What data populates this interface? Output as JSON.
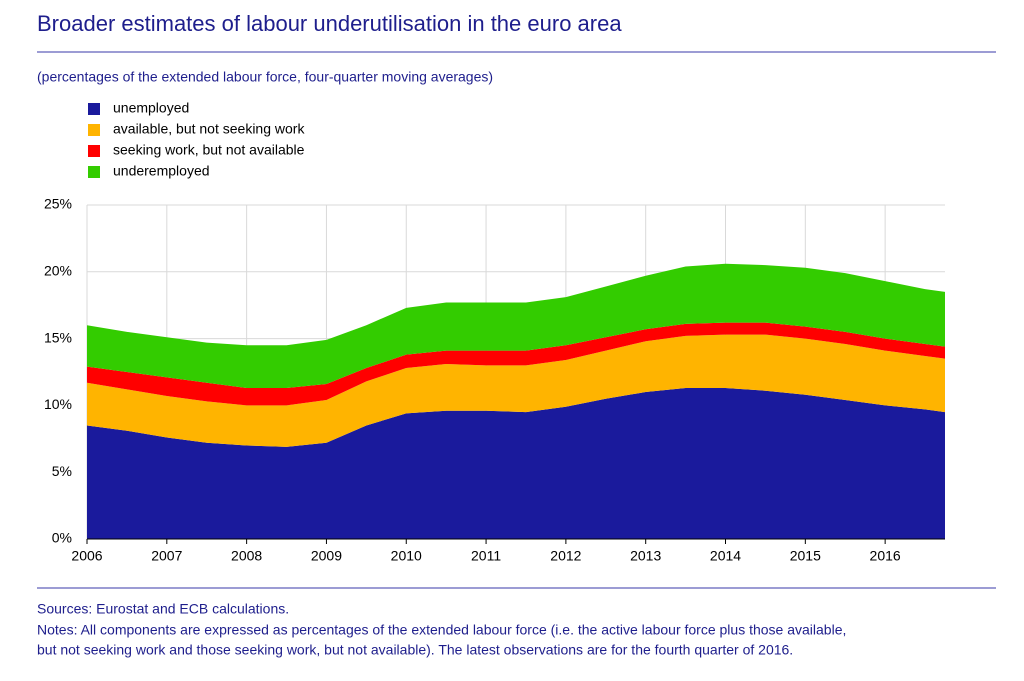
{
  "chart_data": {
    "type": "stacked-area",
    "title": "Broader estimates of labour underutilisation in the euro area",
    "subtitle": "(percentages of the extended labour force, four-quarter moving averages)",
    "x": [
      2006,
      2006.5,
      2007,
      2007.5,
      2008,
      2008.5,
      2009,
      2009.5,
      2010,
      2010.5,
      2011,
      2011.5,
      2012,
      2012.5,
      2013,
      2013.5,
      2014,
      2014.5,
      2015,
      2015.5,
      2016,
      2016.5,
      2016.75
    ],
    "series": [
      {
        "name": "unemployed",
        "color": "#1a1a9c",
        "values": [
          8.5,
          8.1,
          7.6,
          7.2,
          7.0,
          6.9,
          7.2,
          8.5,
          9.4,
          9.6,
          9.6,
          9.5,
          9.9,
          10.5,
          11.0,
          11.3,
          11.3,
          11.1,
          10.8,
          10.4,
          10.0,
          9.7,
          9.5
        ]
      },
      {
        "name": "available, but not seeking work",
        "color": "#ffb400",
        "values": [
          3.2,
          3.1,
          3.1,
          3.1,
          3.0,
          3.1,
          3.2,
          3.3,
          3.4,
          3.5,
          3.4,
          3.5,
          3.5,
          3.6,
          3.8,
          3.9,
          4.0,
          4.2,
          4.2,
          4.2,
          4.1,
          4.0,
          4.0
        ]
      },
      {
        "name": "seeking work, but not available",
        "color": "#ff0000",
        "values": [
          1.2,
          1.3,
          1.4,
          1.4,
          1.3,
          1.3,
          1.2,
          1.0,
          1.0,
          1.0,
          1.1,
          1.1,
          1.1,
          1.0,
          0.9,
          0.9,
          0.9,
          0.9,
          0.9,
          0.9,
          0.9,
          0.9,
          0.9
        ]
      },
      {
        "name": "underemployed",
        "color": "#33cc00",
        "values": [
          3.1,
          3.0,
          3.0,
          3.0,
          3.2,
          3.2,
          3.3,
          3.2,
          3.5,
          3.6,
          3.6,
          3.6,
          3.6,
          3.8,
          4.0,
          4.3,
          4.4,
          4.3,
          4.4,
          4.4,
          4.3,
          4.1,
          4.1
        ]
      }
    ],
    "xlim": [
      2006,
      2016.75
    ],
    "xticks": [
      2006,
      2007,
      2008,
      2009,
      2010,
      2011,
      2012,
      2013,
      2014,
      2015,
      2016
    ],
    "ylim": [
      0,
      25
    ],
    "yticks": [
      {
        "value": 0,
        "label": "0%"
      },
      {
        "value": 5,
        "label": "5%"
      },
      {
        "value": 10,
        "label": "10%"
      },
      {
        "value": 15,
        "label": "15%"
      },
      {
        "value": 20,
        "label": "20%"
      },
      {
        "value": 25,
        "label": "25%"
      }
    ],
    "grid": true,
    "sources": "Sources: Eurostat and ECB calculations.",
    "notes": [
      "Notes: All components are expressed as percentages of the extended labour force (i.e. the active labour force plus those available,",
      "but not seeking work and those seeking work, but not available). The latest observations are for the fourth quarter of 2016."
    ]
  }
}
